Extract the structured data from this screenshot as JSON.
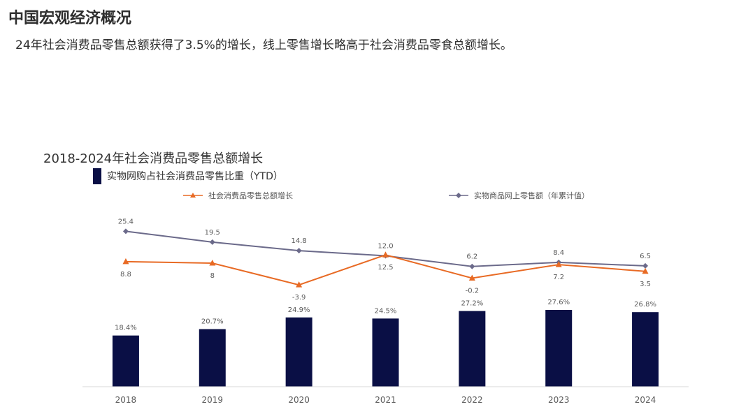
{
  "header": {
    "title": "中国宏观经济概况",
    "subtitle": "24年社会消费品零售总额获得了3.5%的增长，线上零售增长略高于社会消费品零食总额增长。"
  },
  "colors": {
    "bar": "#0a0f45",
    "retail_line": "#e86a24",
    "online_line": "#6b6a8a",
    "axis": "#d9d9d9"
  },
  "chart_data": {
    "type": "bar",
    "title": "2018-2024年社会消费品零售总额增长",
    "categories": [
      "2018",
      "2019",
      "2020",
      "2021",
      "2022",
      "2023",
      "2024"
    ],
    "bar_series": {
      "name": "实物网购占社会消费品零售比重（YTD）",
      "values": [
        18.4,
        20.7,
        24.9,
        24.5,
        27.2,
        27.6,
        26.8
      ],
      "labels": [
        "18.4%",
        "20.7%",
        "24.9%",
        "24.5%",
        "27.2%",
        "27.6%",
        "26.8%"
      ],
      "ylim": [
        0,
        30
      ]
    },
    "line_series": [
      {
        "name": "社会消费品零售总额增长",
        "marker": "triangle",
        "values": [
          8.8,
          8,
          -3.9,
          12.5,
          -0.2,
          7.2,
          3.5
        ],
        "labels": [
          "8.8",
          "8",
          "-3.9",
          "12.5",
          "-0.2",
          "7.2",
          "3.5"
        ]
      },
      {
        "name": "实物商品网上零售额（年累计值）",
        "marker": "diamond",
        "values": [
          25.4,
          19.5,
          14.8,
          12.0,
          6.2,
          8.4,
          6.5
        ],
        "labels": [
          "25.4",
          "19.5",
          "14.8",
          "12.0",
          "6.2",
          "8.4",
          "6.5"
        ]
      }
    ],
    "legend": "top"
  }
}
